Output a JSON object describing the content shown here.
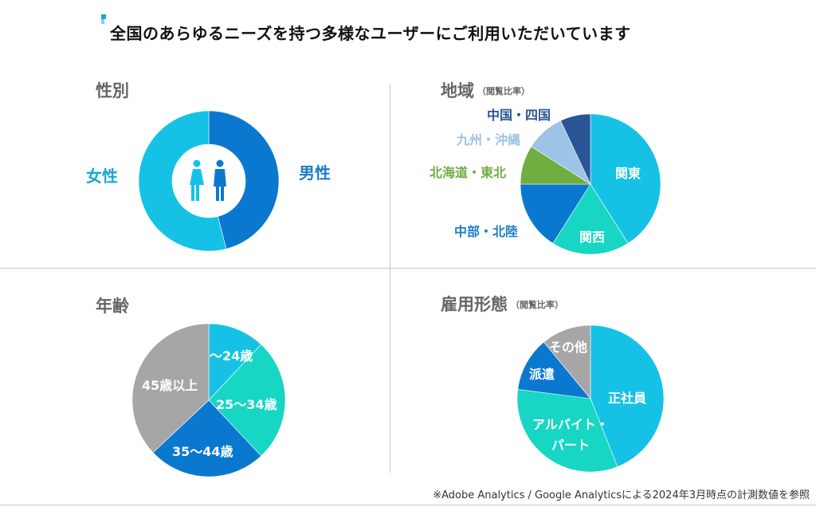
{
  "header": {
    "title": "全国のあらゆるニーズを持つ多様なユーザーにご利用いただいています"
  },
  "footnote": "※Adobe Analytics / Google Analyticsによる2024年3月時点の計測数値を参照",
  "colors": {
    "light_blue": "#15c2e6",
    "blue": "#0b78d0",
    "navy": "#2a5597",
    "green": "#6fae41",
    "pale_blue": "#9dc3e6",
    "teal": "#17d6c3",
    "gray": "#a6a6a6",
    "label_blue": "#1b7fc8",
    "label_light": "#1aa7d8"
  },
  "chart_data": [
    {
      "type": "pie",
      "title": "性別",
      "donut": true,
      "center_icon": "male-female-icon",
      "slices": [
        {
          "label": "男性",
          "value": 46,
          "color": "#0b78d0"
        },
        {
          "label": "女性",
          "value": 54,
          "color": "#15c2e6"
        }
      ]
    },
    {
      "type": "pie",
      "title": "地域",
      "subtitle": "（閲覧比率）",
      "slices": [
        {
          "label": "関東",
          "value": 41,
          "color": "#15c2e6"
        },
        {
          "label": "関西",
          "value": 18,
          "color": "#17d6c3"
        },
        {
          "label": "中部・北陸",
          "value": 16,
          "color": "#0b78d0"
        },
        {
          "label": "北海道・東北",
          "value": 9,
          "color": "#6fae41"
        },
        {
          "label": "九州・沖縄",
          "value": 9,
          "color": "#9dc3e6"
        },
        {
          "label": "中国・四国",
          "value": 7,
          "color": "#2a5597"
        }
      ]
    },
    {
      "type": "pie",
      "title": "年齢",
      "slices": [
        {
          "label": "～24歳",
          "value": 12,
          "color": "#15c2e6"
        },
        {
          "label": "25～34歳",
          "value": 26,
          "color": "#17d6c3"
        },
        {
          "label": "35～44歳",
          "value": 25,
          "color": "#0b78d0"
        },
        {
          "label": "45歳以上",
          "value": 37,
          "color": "#a6a6a6"
        }
      ]
    },
    {
      "type": "pie",
      "title": "雇用形態",
      "subtitle": "（閲覧比率）",
      "slices": [
        {
          "label": "正社員",
          "value": 44,
          "color": "#15c2e6"
        },
        {
          "label": "アルバイト・パート",
          "value": 33,
          "color": "#17d6c3"
        },
        {
          "label": "派遣",
          "value": 12,
          "color": "#0b78d0"
        },
        {
          "label": "その他",
          "value": 11,
          "color": "#a6a6a6"
        }
      ]
    }
  ]
}
